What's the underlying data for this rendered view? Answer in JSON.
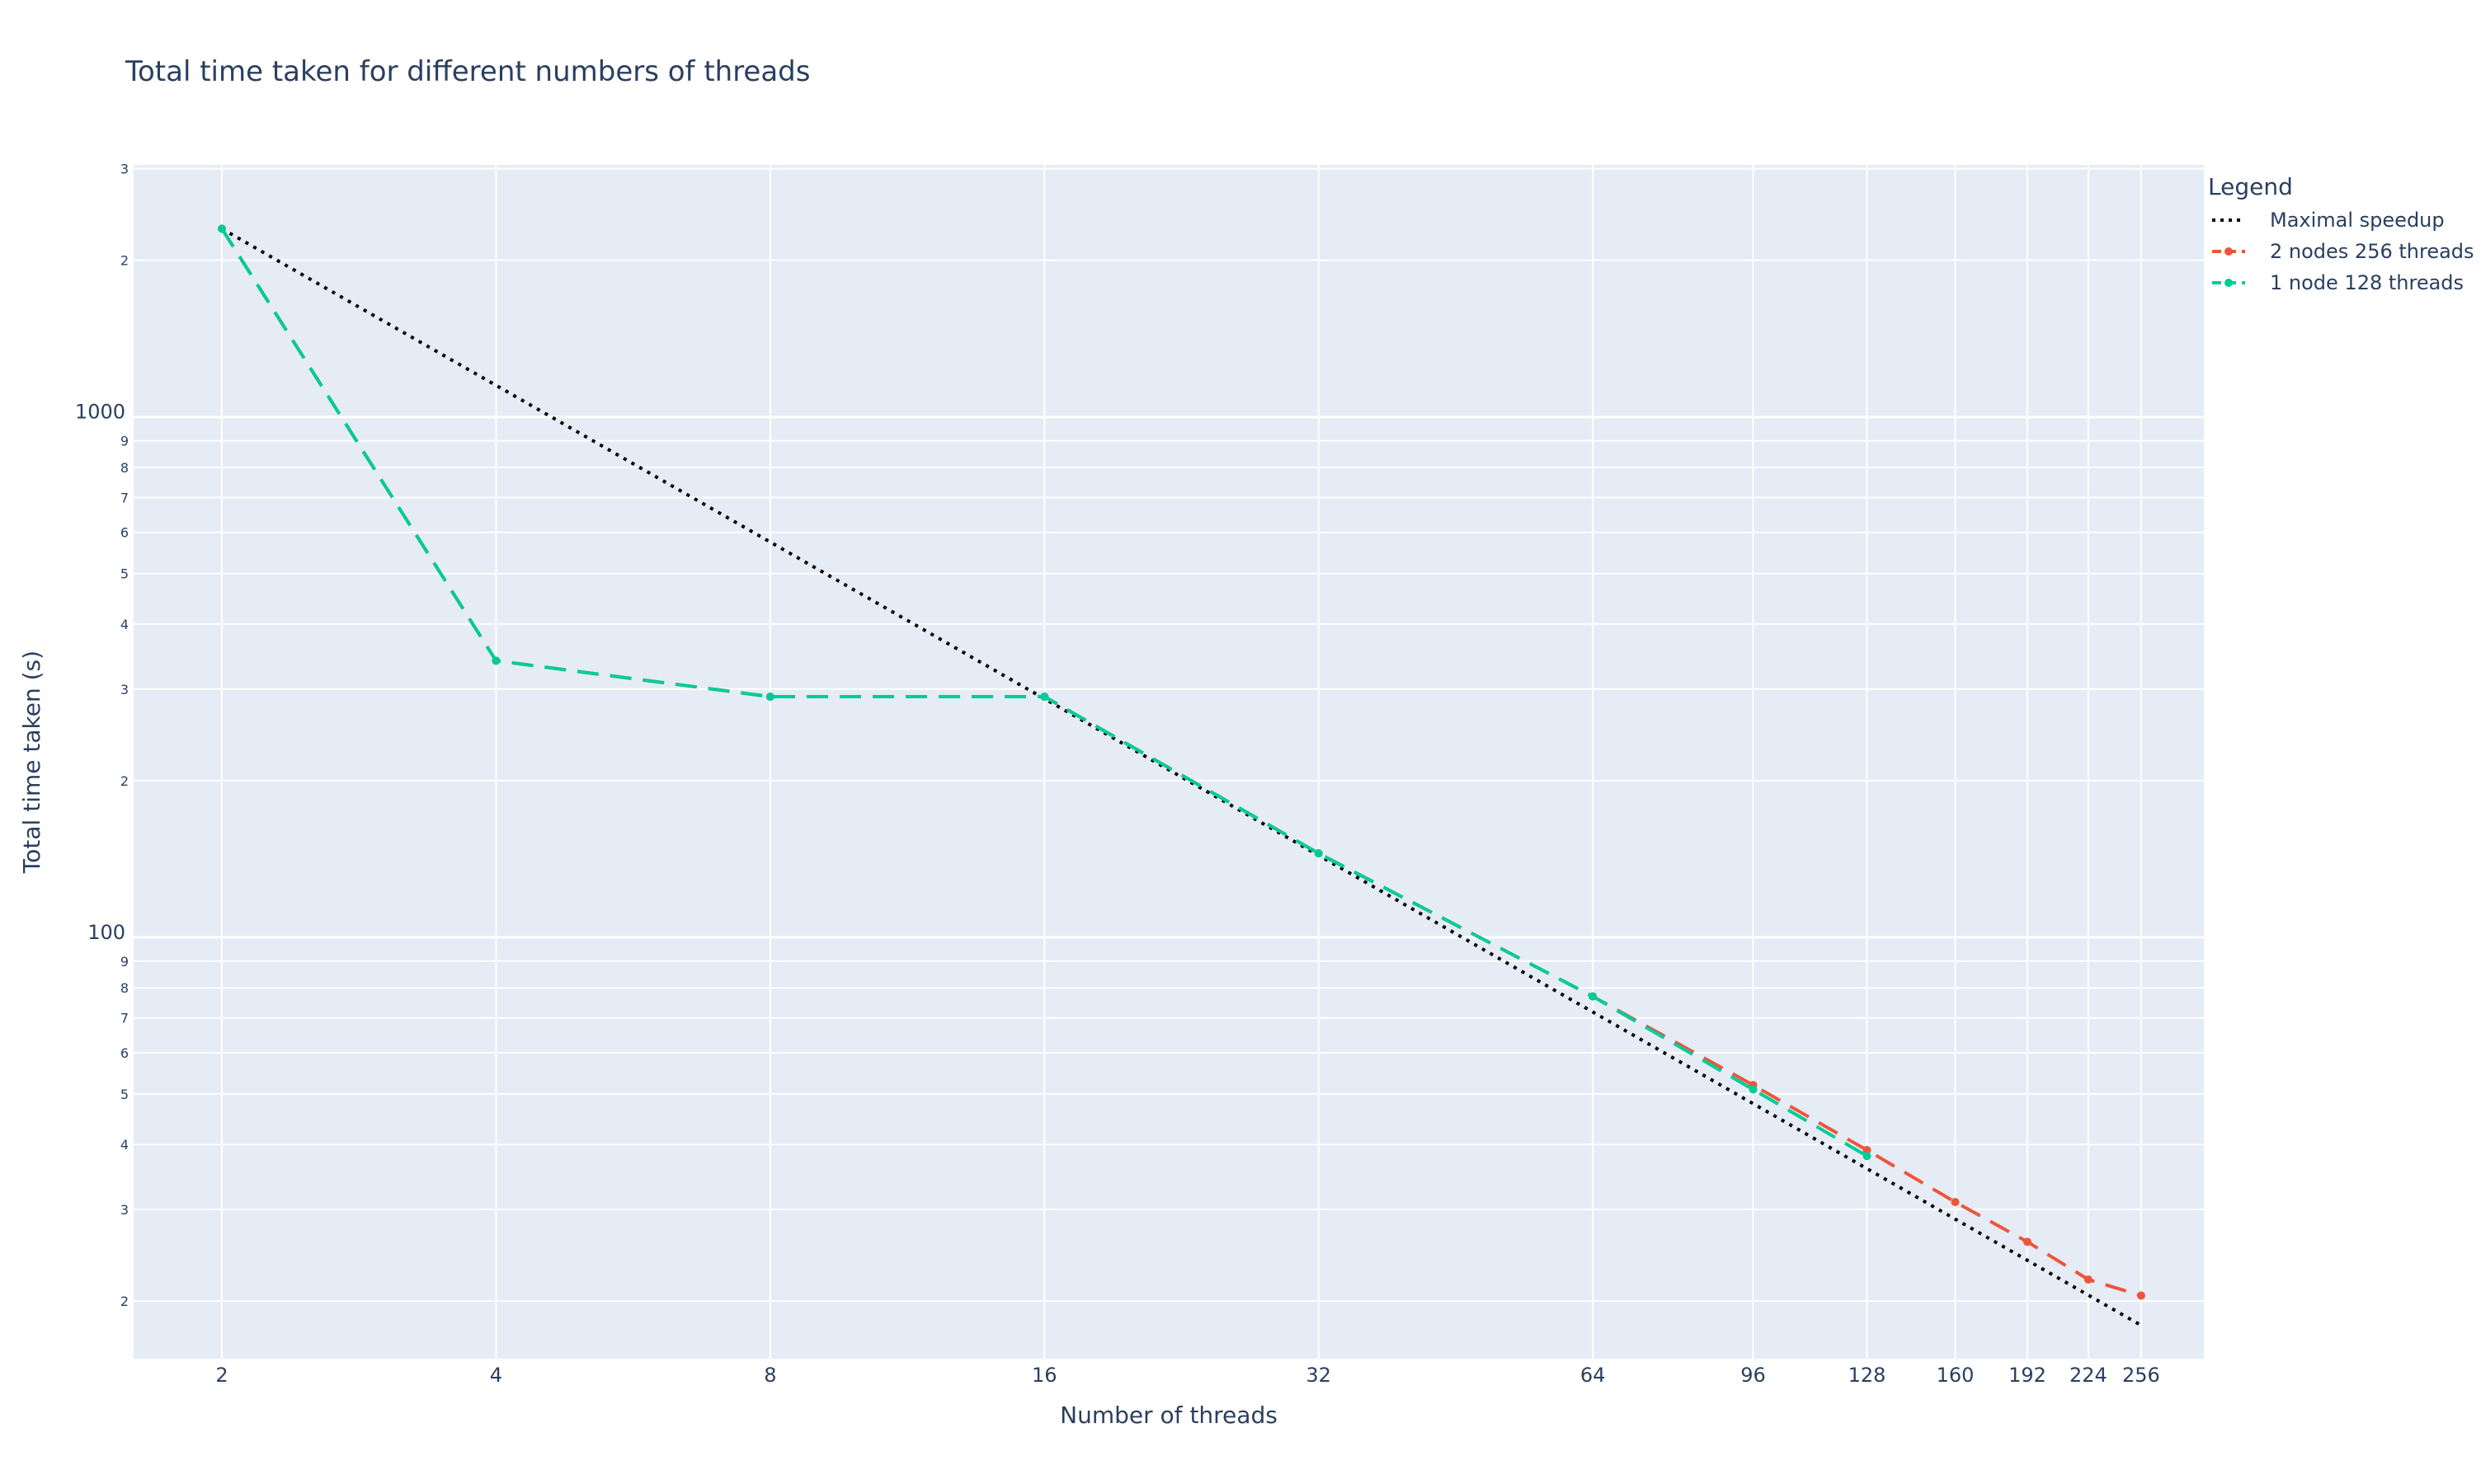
{
  "chart_data": {
    "type": "line",
    "title": "Total time taken for different numbers of threads",
    "xlabel": "Number of threads",
    "ylabel": "Total time taken (s)",
    "x_scale": "log2",
    "y_scale": "log10",
    "xlim": [
      1.6,
      300
    ],
    "ylim": [
      15.5,
      3050
    ],
    "x_ticks": [
      2,
      4,
      8,
      16,
      32,
      64,
      96,
      128,
      160,
      192,
      224,
      256
    ],
    "x_tick_labels": [
      "2",
      "4",
      "8",
      "16",
      "32",
      "64",
      "96",
      "128",
      "160",
      "192",
      "224",
      "256"
    ],
    "y_major_ticks": [
      100,
      1000
    ],
    "y_major_tick_labels": [
      "100",
      "1000"
    ],
    "y_minor_ticks": [
      20,
      30,
      40,
      50,
      60,
      70,
      80,
      90,
      200,
      300,
      400,
      500,
      600,
      700,
      800,
      900,
      2000,
      3000
    ],
    "y_minor_tick_labels": [
      "2",
      "3",
      "4",
      "5",
      "6",
      "7",
      "8",
      "9",
      "2",
      "3",
      "4",
      "5",
      "6",
      "7",
      "8",
      "9",
      "2",
      "3"
    ],
    "grid": true,
    "legend_title": "Legend",
    "legend_position": "top-right outside",
    "series": [
      {
        "name": "Maximal speedup",
        "color": "#000000",
        "dash": "dot",
        "markers": false,
        "x": [
          2,
          256
        ],
        "y": [
          2300,
          17.97
        ]
      },
      {
        "name": "2 nodes 256 threads",
        "color": "#ef553b",
        "dash": "dash",
        "markers": true,
        "x": [
          2,
          4,
          8,
          16,
          32,
          64,
          96,
          128,
          160,
          192,
          224,
          256
        ],
        "y": [
          2300,
          340,
          290,
          290,
          145,
          77,
          52,
          39,
          31,
          26,
          22,
          20.5
        ]
      },
      {
        "name": "1 node 128 threads",
        "color": "#00cc96",
        "dash": "dash",
        "markers": true,
        "x": [
          2,
          4,
          8,
          16,
          32,
          64,
          96,
          128
        ],
        "y": [
          2300,
          340,
          290,
          290,
          145,
          77,
          51,
          38
        ]
      }
    ]
  }
}
